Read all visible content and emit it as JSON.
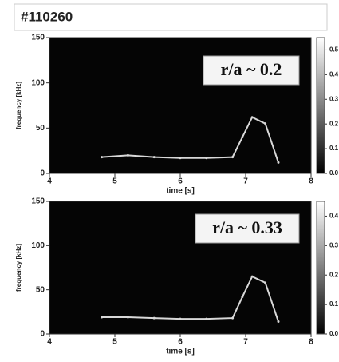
{
  "title": "#110260",
  "chart_data": [
    {
      "type": "line",
      "annotation": "r/a ~ 0.2",
      "xlabel": "time [s]",
      "ylabel": "frequency [kHz]",
      "xlim": [
        4,
        8
      ],
      "xticks": [
        4,
        5,
        6,
        7,
        8
      ],
      "ylim": [
        0,
        150
      ],
      "yticks": [
        0,
        50,
        100,
        150
      ],
      "x": [
        4.8,
        5.2,
        5.6,
        6.0,
        6.4,
        6.8,
        6.95,
        7.1,
        7.3,
        7.5
      ],
      "values": [
        18,
        20,
        18,
        17,
        17,
        18,
        40,
        62,
        55,
        12
      ],
      "color": "#d8d8d8",
      "colorbar": {
        "lim": [
          0,
          0.55
        ],
        "ticks": [
          0.5,
          0.4,
          0.3,
          0.2,
          0.1,
          {
            "value": 0,
            "label": "0.0"
          }
        ]
      }
    },
    {
      "type": "line",
      "annotation": "r/a ~ 0.33",
      "xlabel": "time [s]",
      "ylabel": "frequency [kHz]",
      "xlim": [
        4,
        8
      ],
      "xticks": [
        4,
        5,
        6,
        7,
        8
      ],
      "ylim": [
        0,
        150
      ],
      "yticks": [
        0,
        50,
        100,
        150
      ],
      "x": [
        4.8,
        5.2,
        5.6,
        6.0,
        6.4,
        6.8,
        6.95,
        7.1,
        7.3,
        7.5
      ],
      "values": [
        19,
        19,
        18,
        17,
        17,
        18,
        42,
        65,
        58,
        14
      ],
      "color": "#d8d8d8",
      "colorbar": {
        "lim": [
          0,
          0.45
        ],
        "ticks": [
          0.4,
          0.3,
          0.2,
          0.1,
          {
            "value": 0,
            "label": "0.0"
          }
        ]
      }
    }
  ]
}
